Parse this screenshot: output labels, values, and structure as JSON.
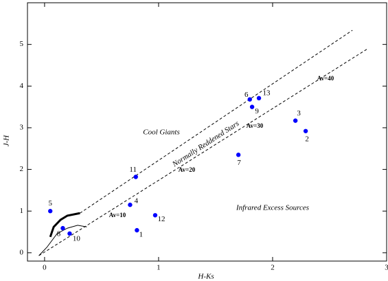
{
  "chart_data": {
    "type": "scatter",
    "x_label": "H-Ks",
    "y_label": "J-H",
    "xlim": [
      -0.15,
      3
    ],
    "ylim": [
      -0.2,
      6
    ],
    "xticks": [
      0,
      1,
      2,
      3
    ],
    "yticks": [
      0,
      1,
      2,
      3,
      4,
      5
    ],
    "points": {
      "color": "#0000ff",
      "labels": [
        "5",
        "8",
        "10",
        "4",
        "1",
        "12",
        "11",
        "7",
        "6",
        "9",
        "13",
        "3",
        "2"
      ],
      "x": [
        0.05,
        0.16,
        0.22,
        0.75,
        0.81,
        0.97,
        0.8,
        1.7,
        1.8,
        1.82,
        1.88,
        2.2,
        2.29
      ],
      "y": [
        1.0,
        0.59,
        0.46,
        1.15,
        0.54,
        0.9,
        1.82,
        2.35,
        3.68,
        3.5,
        3.71,
        3.17,
        2.92
      ]
    },
    "series": [
      {
        "color": "#000000",
        "dashed": true,
        "width": 1,
        "x": [
          0.31,
          2.7
        ],
        "y": [
          0.95,
          5.34
        ]
      },
      {
        "color": "#000000",
        "dashed": true,
        "width": 1,
        "x": [
          -0.05,
          2.83
        ],
        "y": [
          -0.07,
          4.89
        ]
      },
      {
        "color": "#000000",
        "dashed": false,
        "width": 3,
        "x": [
          0.05,
          0.08,
          0.14,
          0.2,
          0.31
        ],
        "y": [
          0.38,
          0.62,
          0.79,
          0.89,
          0.95
        ]
      },
      {
        "color": "#000000",
        "dashed": false,
        "width": 1,
        "x": [
          -0.05,
          0.02,
          0.11,
          0.2,
          0.29,
          0.37
        ],
        "y": [
          -0.07,
          0.13,
          0.46,
          0.59,
          0.66,
          0.62
        ]
      }
    ],
    "annotations": [
      "Cool Giants",
      "Normally Reddened Stars",
      "Av=10",
      "Av=20",
      "Av=30",
      "Av=40",
      "Infrared Excess Sources"
    ]
  }
}
